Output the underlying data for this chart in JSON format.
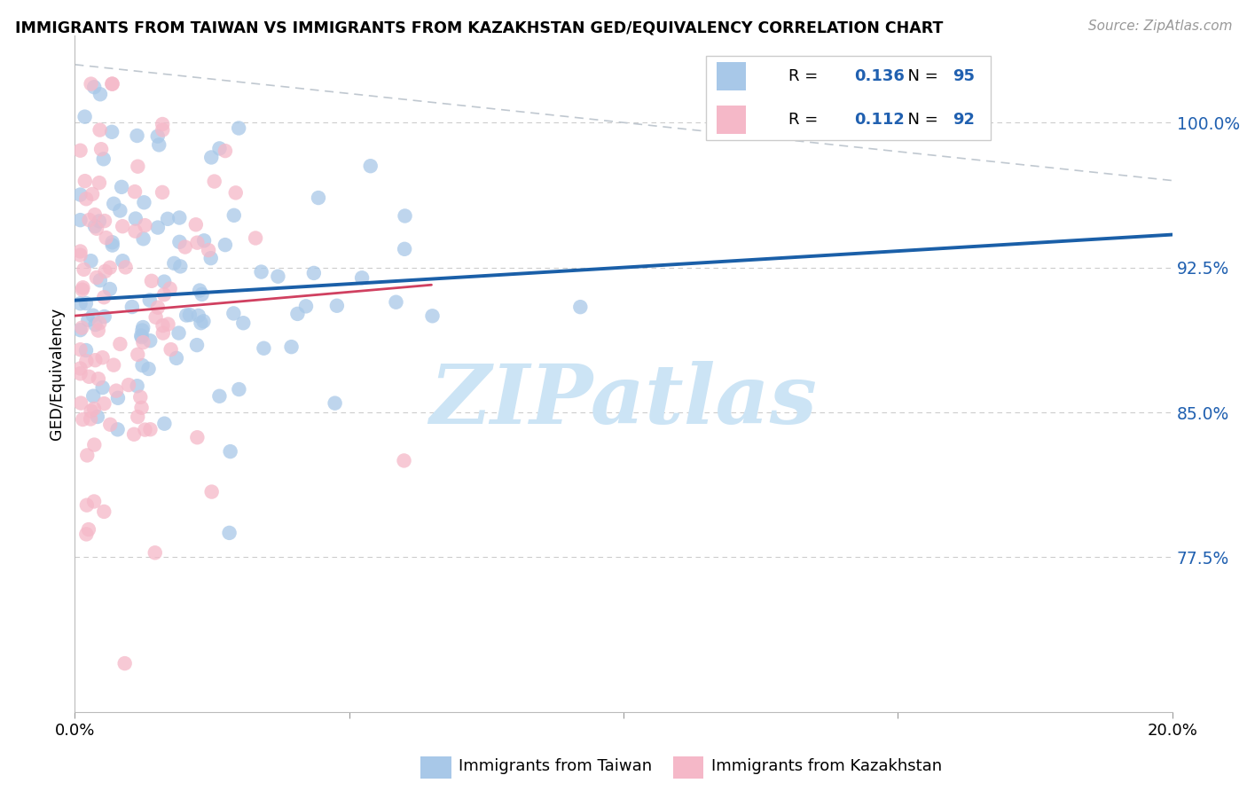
{
  "title": "IMMIGRANTS FROM TAIWAN VS IMMIGRANTS FROM KAZAKHSTAN GED/EQUIVALENCY CORRELATION CHART",
  "source": "Source: ZipAtlas.com",
  "ylabel": "GED/Equivalency",
  "yticks": [
    0.775,
    0.85,
    0.925,
    1.0
  ],
  "ytick_labels": [
    "77.5%",
    "85.0%",
    "92.5%",
    "100.0%"
  ],
  "xmin": 0.0,
  "xmax": 0.2,
  "ymin": 0.695,
  "ymax": 1.045,
  "taiwan_color": "#a8c8e8",
  "taiwan_line_color": "#1a5fa8",
  "kazakhstan_color": "#f5b8c8",
  "kazakhstan_line_color": "#d04060",
  "taiwan_R": 0.136,
  "taiwan_N": 95,
  "kazakhstan_R": 0.112,
  "kazakhstan_N": 92,
  "legend_color": "#2060b0",
  "watermark_color": "#cce4f5",
  "diag_color": "#c0c8d0",
  "taiwan_line_y0": 0.908,
  "taiwan_line_y1": 0.942,
  "kazakhstan_line_y0": 0.9,
  "kazakhstan_line_y1": 0.916,
  "kazakhstan_line_x1": 0.065
}
